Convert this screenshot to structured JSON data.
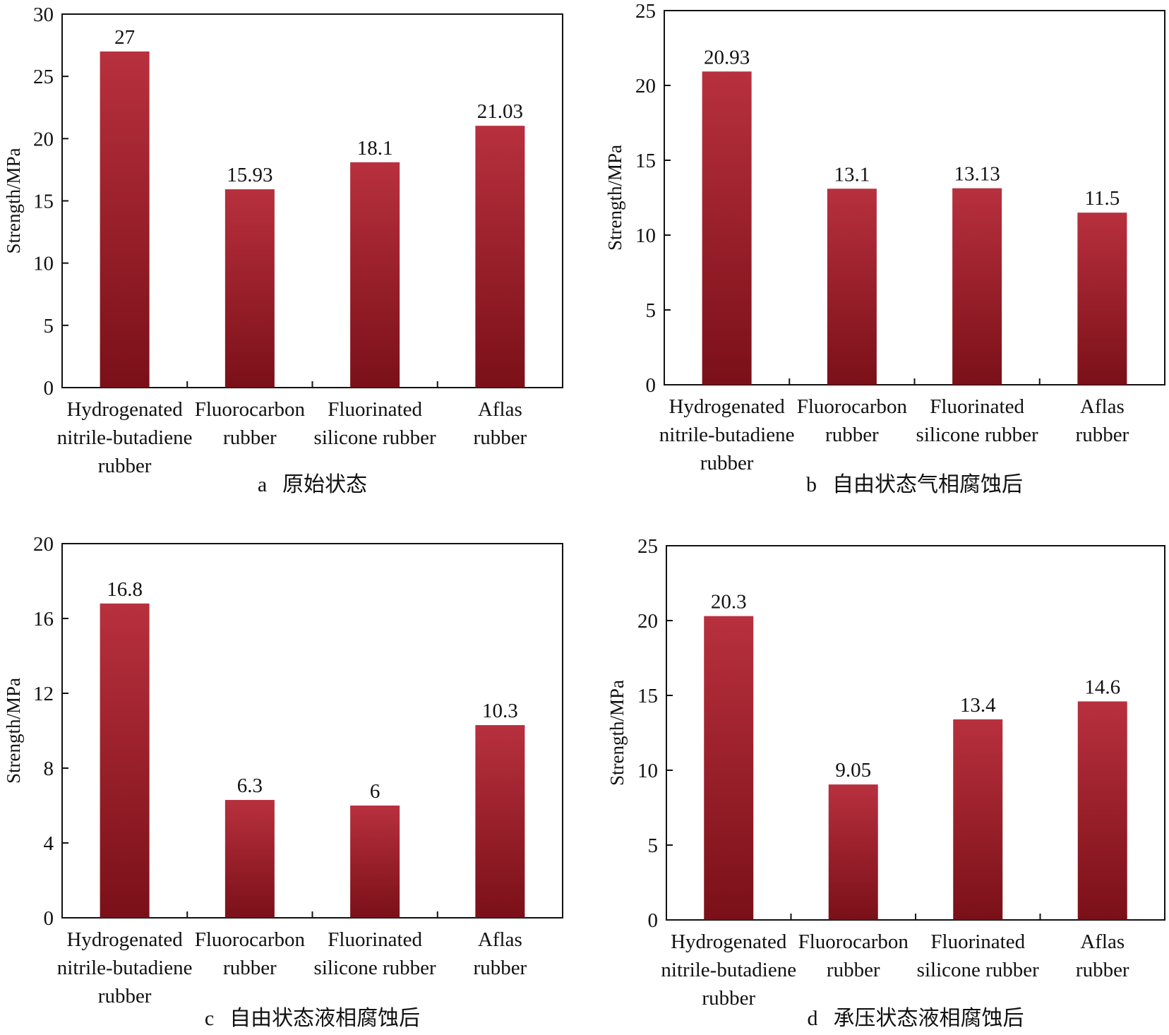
{
  "figure": {
    "bar_color_top": "#b8303e",
    "bar_color_bottom": "#7a1018"
  },
  "chart_data": [
    {
      "type": "bar",
      "panel": "a",
      "caption_letter": "a",
      "caption_text": "原始状态",
      "ylabel": "Strength/MPa",
      "ylim": [
        0,
        30
      ],
      "yticks": [
        0,
        5,
        10,
        15,
        20,
        25,
        30
      ],
      "categories": [
        [
          "Hydrogenated",
          "nitrile-butadiene",
          "rubber"
        ],
        [
          "Fluorocarbon",
          "rubber"
        ],
        [
          "Fluorinated",
          "silicone rubber"
        ],
        [
          "Aflas",
          "rubber"
        ]
      ],
      "values": [
        27,
        15.93,
        18.1,
        21.03
      ],
      "value_labels": [
        "27",
        "15.93",
        "18.1",
        "21.03"
      ]
    },
    {
      "type": "bar",
      "panel": "b",
      "caption_letter": "b",
      "caption_text": "自由状态气相腐蚀后",
      "ylabel": "Strength/MPa",
      "ylim": [
        0,
        25
      ],
      "yticks": [
        0,
        5,
        10,
        15,
        20,
        25
      ],
      "categories": [
        [
          "Hydrogenated",
          "nitrile-butadiene",
          "rubber"
        ],
        [
          "Fluorocarbon",
          "rubber"
        ],
        [
          "Fluorinated",
          "silicone rubber"
        ],
        [
          "Aflas",
          "rubber"
        ]
      ],
      "values": [
        20.93,
        13.1,
        13.13,
        11.5
      ],
      "value_labels": [
        "20.93",
        "13.1",
        "13.13",
        "11.5"
      ]
    },
    {
      "type": "bar",
      "panel": "c",
      "caption_letter": "c",
      "caption_text": "自由状态液相腐蚀后",
      "ylabel": "Strength/MPa",
      "ylim": [
        0,
        20
      ],
      "yticks": [
        0,
        4,
        8,
        12,
        16,
        20
      ],
      "categories": [
        [
          "Hydrogenated",
          "nitrile-butadiene",
          "rubber"
        ],
        [
          "Fluorocarbon",
          "rubber"
        ],
        [
          "Fluorinated",
          "silicone rubber"
        ],
        [
          "Aflas",
          "rubber"
        ]
      ],
      "values": [
        16.8,
        6.3,
        6,
        10.3
      ],
      "value_labels": [
        "16.8",
        "6.3",
        "6",
        "10.3"
      ]
    },
    {
      "type": "bar",
      "panel": "d",
      "caption_letter": "d",
      "caption_text": "承压状态液相腐蚀后",
      "ylabel": "Strength/MPa",
      "ylim": [
        0,
        25
      ],
      "yticks": [
        0,
        5,
        10,
        15,
        20,
        25
      ],
      "categories": [
        [
          "Hydrogenated",
          "nitrile-butadiene",
          "rubber"
        ],
        [
          "Fluorocarbon",
          "rubber"
        ],
        [
          "Fluorinated",
          "silicone rubber"
        ],
        [
          "Aflas",
          "rubber"
        ]
      ],
      "values": [
        20.3,
        9.05,
        13.4,
        14.6
      ],
      "value_labels": [
        "20.3",
        "9.05",
        "13.4",
        "14.6"
      ]
    }
  ]
}
